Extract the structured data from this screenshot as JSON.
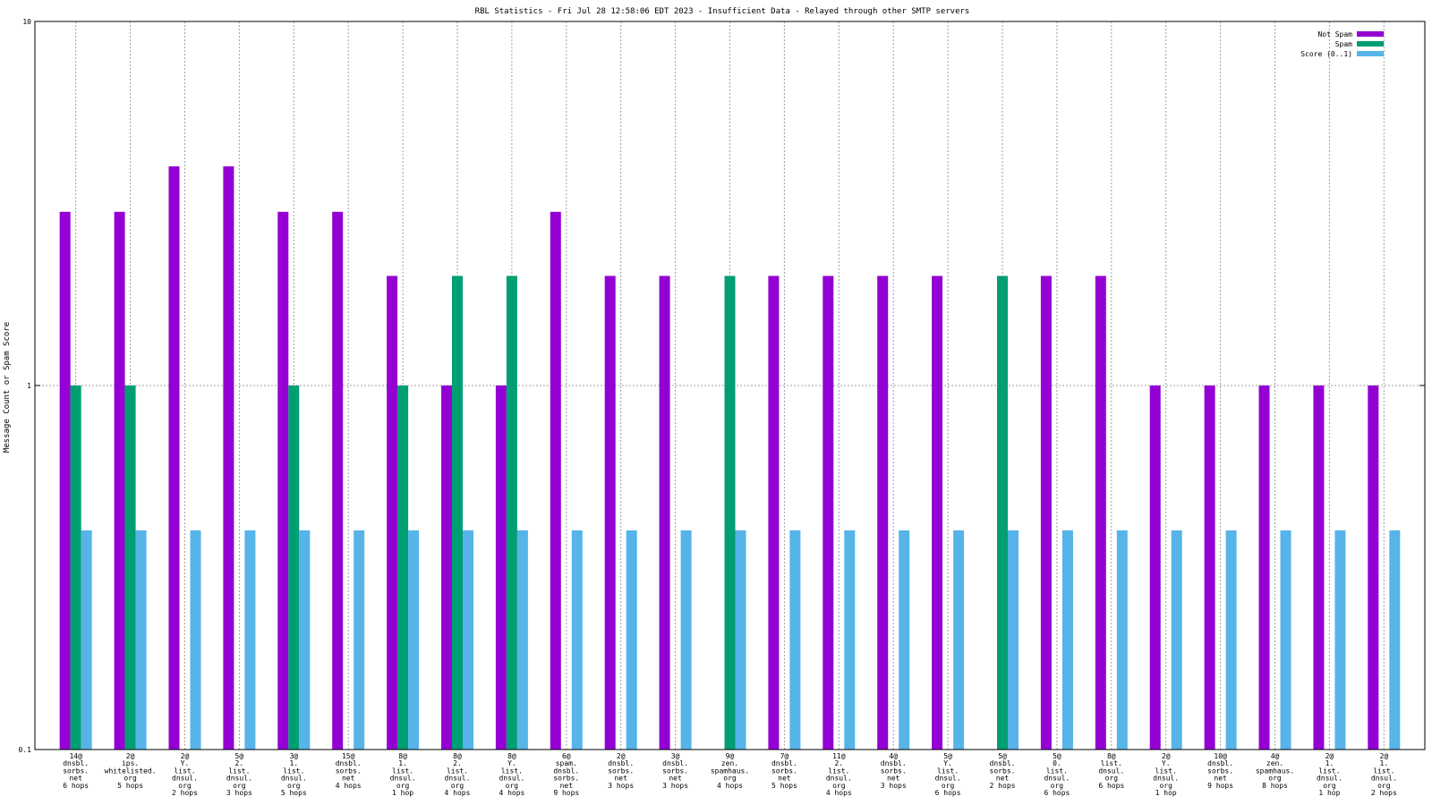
{
  "chart_data": {
    "type": "bar",
    "title": "RBL Statistics - Fri Jul 28 12:58:06 EDT 2023 - Insufficient Data - Relayed through other SMTP servers",
    "ylabel": "Message Count or Spam Score",
    "xlabel": "",
    "yscale": "log",
    "ylim": [
      0.1,
      10
    ],
    "yticks": [
      "0.1",
      "1",
      "10"
    ],
    "grid": true,
    "legend_position": "top-right",
    "categories": [
      "14@\ndnsbl.\nsorbs.\nnet\n6 hops",
      "2@\nips.\nwhitelisted.\norg\n5 hops",
      "2@\nY.\nlist.\ndnsul.\norg\n2 hops",
      "5@\n2.\nlist.\ndnsul.\norg\n3 hops",
      "3@\n1.\nlist.\ndnsul.\norg\n5 hops",
      "15@\ndnsbl.\nsorbs.\nnet\n4 hops",
      "8@\n1.\nlist.\ndnsul.\norg\n1 hop",
      "8@\n2.\nlist.\ndnsul.\norg\n4 hops",
      "8@\nY.\nlist.\ndnsul.\norg\n4 hops",
      "6@\nspam.\ndnsbl.\nsorbs.\nnet\n9 hops",
      "2@\ndnsbl.\nsorbs.\nnet\n3 hops",
      "3@\ndnsbl.\nsorbs.\nnet\n3 hops",
      "9@\nzen.\nspamhaus.\norg\n4 hops",
      "7@\ndnsbl.\nsorbs.\nnet\n5 hops",
      "11@\n2.\nlist.\ndnsul.\norg\n4 hops",
      "4@\ndnsbl.\nsorbs.\nnet\n3 hops",
      "5@\nY.\nlist.\ndnsul.\norg\n6 hops",
      "5@\ndnsbl.\nsorbs.\nnet\n2 hops",
      "5@\n0.\nlist.\ndnsul.\norg\n6 hops",
      "8@\nlist.\ndnsul.\norg\n6 hops",
      "2@\nY.\nlist.\ndnsul.\norg\n1 hop",
      "10@\ndnsbl.\nsorbs.\nnet\n9 hops",
      "4@\nzen.\nspamhaus.\norg\n8 hops",
      "2@\n1.\nlist.\ndnsul.\norg\n1 hop",
      "2@\n1.\nlist.\ndnsul.\norg\n2 hops"
    ],
    "series": [
      {
        "name": "Not Spam",
        "color": "#9400d3",
        "values": [
          3,
          3,
          4,
          4,
          3,
          3,
          2,
          1,
          1,
          3,
          2,
          2,
          null,
          2,
          2,
          2,
          2,
          null,
          2,
          2,
          1,
          1,
          1,
          1,
          1
        ]
      },
      {
        "name": "Spam",
        "color": "#009e73",
        "values": [
          1,
          1,
          null,
          null,
          1,
          null,
          1,
          2,
          2,
          null,
          null,
          null,
          2,
          null,
          null,
          null,
          null,
          2,
          null,
          null,
          null,
          null,
          null,
          null,
          null
        ]
      },
      {
        "name": "Score (0..1)",
        "color": "#56b4e9",
        "values": [
          0.4,
          0.4,
          0.4,
          0.4,
          0.4,
          0.4,
          0.4,
          0.4,
          0.4,
          0.4,
          0.4,
          0.4,
          0.4,
          0.4,
          0.4,
          0.4,
          0.4,
          0.4,
          0.4,
          0.4,
          0.4,
          0.4,
          0.4,
          0.4,
          0.4
        ]
      }
    ]
  }
}
